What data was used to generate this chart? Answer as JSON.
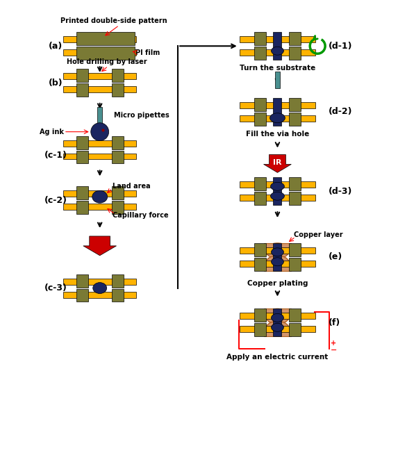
{
  "bg_color": "#ffffff",
  "gold_color": "#FFB300",
  "olive_color": "#7A7A35",
  "dark_blue": "#1a2560",
  "teal_color": "#4A9090",
  "red_color": "#CC0000",
  "copper_color": "#B06020",
  "copper_light": "#D4956A",
  "green_color": "#009900",
  "labels": {
    "a": "(a)",
    "b": "(b)",
    "c1": "(c-1)",
    "c2": "(c-2)",
    "c3": "(c-3)",
    "d1": "(d-1)",
    "d2": "(d-2)",
    "d3": "(d-3)",
    "e": "(e)",
    "f": "(f)"
  },
  "annotations": {
    "printed_double_side": "Printed double-side pattern",
    "pi_film": "PI film",
    "hole_drilling": "Hole drilling by laser",
    "micro_pipettes": "Micro pipettes",
    "ag_ink": "Ag ink",
    "land_area": "Land area",
    "capillary_force": "Capillary force",
    "turn_substrate": "Turn the substrate",
    "fill_via_hole": "Fill the via hole",
    "copper_layer": "Copper layer",
    "copper_plating": "Copper plating",
    "apply_electric": "Apply an electric current"
  }
}
